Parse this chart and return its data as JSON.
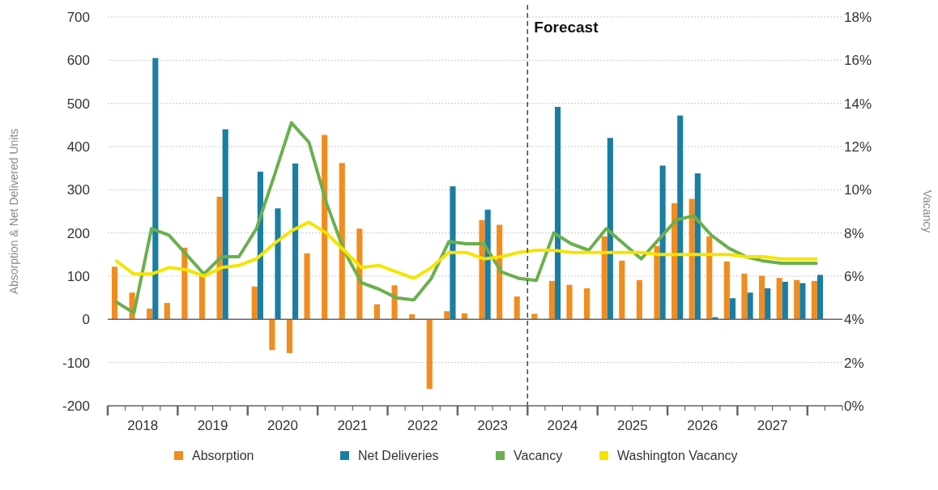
{
  "chart_data": {
    "type": "bar",
    "xlabel": null,
    "ylabel": "Absorption & Net Delivered Units",
    "y2label": "Vacancy",
    "x": [
      2018.125,
      2018.375,
      2018.625,
      2018.875,
      2019.125,
      2019.375,
      2019.625,
      2019.875,
      2020.125,
      2020.375,
      2020.625,
      2020.875,
      2021.125,
      2021.375,
      2021.625,
      2021.875,
      2022.125,
      2022.375,
      2022.625,
      2022.875,
      2023.125,
      2023.375,
      2023.625,
      2023.875,
      2024.125,
      2024.375,
      2024.625,
      2024.875,
      2025.125,
      2025.375,
      2025.625,
      2025.875,
      2026.125,
      2026.375,
      2026.625,
      2026.875,
      2027.125,
      2027.375,
      2027.625,
      2027.875,
      2028.125
    ],
    "series": [
      {
        "name": "Absorption",
        "color": "#f28c1e",
        "values": [
          122,
          62,
          25,
          38,
          166,
          100,
          284,
          null,
          76,
          -71,
          -78,
          153,
          427,
          362,
          210,
          35,
          79,
          12,
          -161,
          19,
          14,
          230,
          219,
          53,
          13,
          89,
          80,
          72,
          192,
          136,
          91,
          170,
          269,
          279,
          192,
          134,
          106,
          101,
          96,
          91,
          89
        ]
      },
      {
        "name": "Net Deliveries",
        "color": "#1a7ea3",
        "values": [
          null,
          null,
          605,
          null,
          null,
          null,
          440,
          null,
          342,
          257,
          361,
          null,
          null,
          null,
          null,
          null,
          null,
          null,
          null,
          308,
          null,
          254,
          null,
          null,
          null,
          492,
          null,
          null,
          420,
          null,
          null,
          356,
          472,
          338,
          5,
          49,
          62,
          72,
          87,
          84,
          103
        ]
      },
      {
        "name": "Vacancy",
        "type": "line",
        "axis": "y2",
        "color": "#6ab04c",
        "values": [
          4.8,
          4.3,
          8.2,
          7.9,
          7.0,
          6.1,
          6.9,
          6.9,
          8.2,
          10.6,
          13.1,
          12.2,
          9.4,
          7.2,
          5.7,
          5.4,
          5.0,
          4.9,
          5.9,
          7.6,
          7.5,
          7.5,
          6.2,
          5.9,
          5.8,
          8.0,
          7.5,
          7.2,
          8.2,
          7.5,
          6.8,
          7.7,
          8.6,
          8.8,
          7.9,
          7.3,
          6.9,
          6.7,
          6.6,
          6.6,
          6.6
        ]
      },
      {
        "name": "Washington Vacancy",
        "type": "line",
        "axis": "y2",
        "color": "#f5e400",
        "values": [
          6.7,
          6.1,
          6.1,
          6.4,
          6.3,
          6.0,
          6.4,
          6.5,
          6.8,
          7.5,
          8.1,
          8.5,
          8.0,
          7.2,
          6.4,
          6.5,
          6.2,
          5.9,
          6.4,
          7.1,
          7.1,
          6.8,
          6.9,
          7.1,
          7.2,
          7.2,
          7.1,
          7.1,
          7.1,
          7.1,
          7.1,
          7.0,
          7.0,
          7.0,
          7.0,
          7.0,
          6.9,
          6.9,
          6.8,
          6.8,
          6.8
        ]
      }
    ],
    "xlim": [
      2018,
      2028.5
    ],
    "xticks": [
      {
        "value": 2018,
        "label": null
      },
      {
        "value": 2018.25,
        "label": null
      },
      {
        "value": 2018.5,
        "label": "2018"
      },
      {
        "value": 2018.75,
        "label": null
      },
      {
        "value": 2019,
        "label": null
      },
      {
        "value": 2019.25,
        "label": null
      },
      {
        "value": 2019.5,
        "label": "2019"
      },
      {
        "value": 2019.75,
        "label": null
      },
      {
        "value": 2020,
        "label": null
      },
      {
        "value": 2020.25,
        "label": null
      },
      {
        "value": 2020.5,
        "label": "2020"
      },
      {
        "value": 2020.75,
        "label": null
      },
      {
        "value": 2021,
        "label": null
      },
      {
        "value": 2021.25,
        "label": null
      },
      {
        "value": 2021.5,
        "label": "2021"
      },
      {
        "value": 2021.75,
        "label": null
      },
      {
        "value": 2022,
        "label": null
      },
      {
        "value": 2022.25,
        "label": null
      },
      {
        "value": 2022.5,
        "label": "2022"
      },
      {
        "value": 2022.75,
        "label": null
      },
      {
        "value": 2023,
        "label": null
      },
      {
        "value": 2023.25,
        "label": null
      },
      {
        "value": 2023.5,
        "label": "2023"
      },
      {
        "value": 2023.75,
        "label": null
      },
      {
        "value": 2024,
        "label": null
      },
      {
        "value": 2024.25,
        "label": null
      },
      {
        "value": 2024.5,
        "label": "2024"
      },
      {
        "value": 2024.75,
        "label": null
      },
      {
        "value": 2025,
        "label": null
      },
      {
        "value": 2025.25,
        "label": null
      },
      {
        "value": 2025.5,
        "label": "2025"
      },
      {
        "value": 2025.75,
        "label": null
      },
      {
        "value": 2026,
        "label": null
      },
      {
        "value": 2026.25,
        "label": null
      },
      {
        "value": 2026.5,
        "label": "2026"
      },
      {
        "value": 2026.75,
        "label": null
      },
      {
        "value": 2027,
        "label": null
      },
      {
        "value": 2027.25,
        "label": null
      },
      {
        "value": 2027.5,
        "label": "2027"
      },
      {
        "value": 2027.75,
        "label": null
      },
      {
        "value": 2028,
        "label": null
      },
      {
        "value": 2028.25,
        "label": null
      },
      {
        "value": 2028.5,
        "label": null
      }
    ],
    "ylim": [
      -200,
      700
    ],
    "yticks": [
      -200,
      -100,
      0,
      100,
      200,
      300,
      400,
      500,
      600,
      700
    ],
    "y2lim": [
      0,
      18
    ],
    "y2ticks": [
      {
        "value": 0,
        "label": "0%"
      },
      {
        "value": 2,
        "label": "2%"
      },
      {
        "value": 4,
        "label": "4%"
      },
      {
        "value": 6,
        "label": "6%"
      },
      {
        "value": 8,
        "label": "8%"
      },
      {
        "value": 10,
        "label": "10%"
      },
      {
        "value": 12,
        "label": "12%"
      },
      {
        "value": 14,
        "label": "14%"
      },
      {
        "value": 16,
        "label": "16%"
      },
      {
        "value": 18,
        "label": "18%"
      }
    ],
    "ref_lines": [
      {
        "axis": "x",
        "value": 2024,
        "label": "Forecast",
        "line_style": "dashed",
        "color": "#444444"
      }
    ],
    "grid": "y",
    "legend": "bottom"
  }
}
